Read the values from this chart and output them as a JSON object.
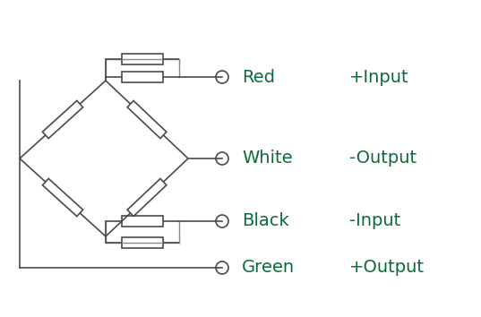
{
  "bg_color": "#ffffff",
  "line_color": "#4a4a4a",
  "gray_color": "#888888",
  "green_color": "#0d6b3a",
  "wire_labels": [
    "Red",
    "White",
    "Black",
    "Green"
  ],
  "signal_labels": [
    "+Input",
    "-Output",
    "-Input",
    "+Output"
  ],
  "figsize": [
    5.37,
    3.54
  ],
  "dpi": 100
}
